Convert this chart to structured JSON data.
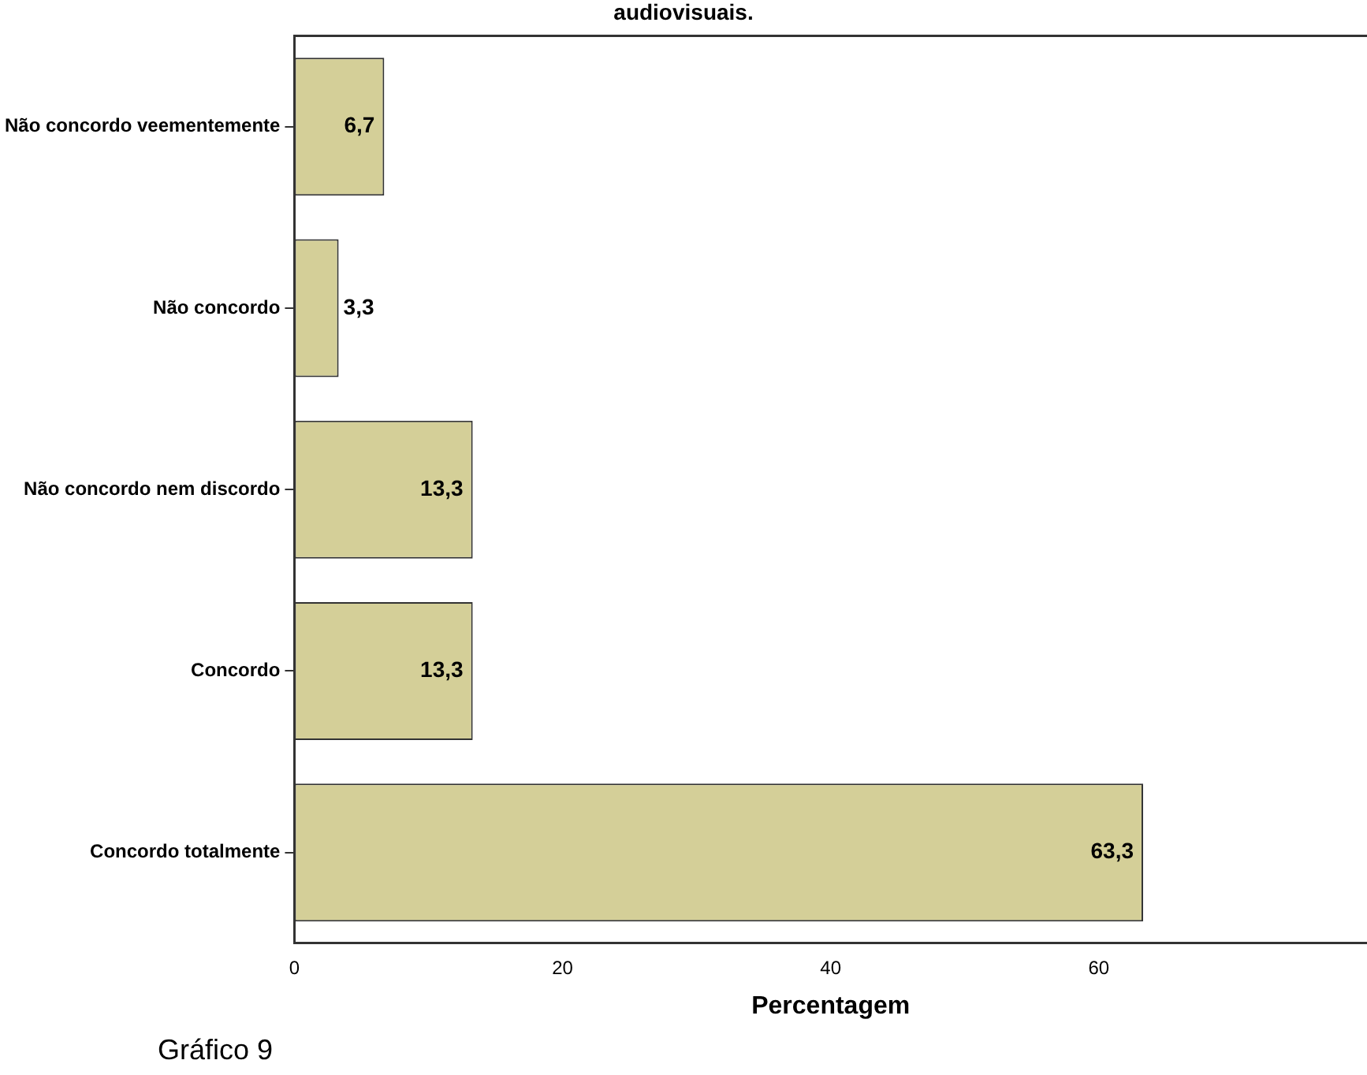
{
  "chart_data": {
    "type": "bar",
    "orientation": "horizontal",
    "title": "audiovisuais.",
    "xlabel": "Percentagem",
    "categories": [
      "Não concordo veementemente",
      "Não concordo",
      "Não concordo nem discordo",
      "Concordo",
      "Concordo totalmente"
    ],
    "values": [
      6.7,
      3.3,
      13.3,
      13.3,
      63.3
    ],
    "color": "#d4cf98",
    "value_labels": [
      "6,7",
      "3,3",
      "13,3",
      "13,3",
      "63,3"
    ],
    "xlim": [
      0,
      80
    ],
    "xticks": [
      0,
      20,
      40,
      60
    ],
    "grid": false,
    "legend": false,
    "annotations": [
      "Gráfico 9"
    ]
  }
}
